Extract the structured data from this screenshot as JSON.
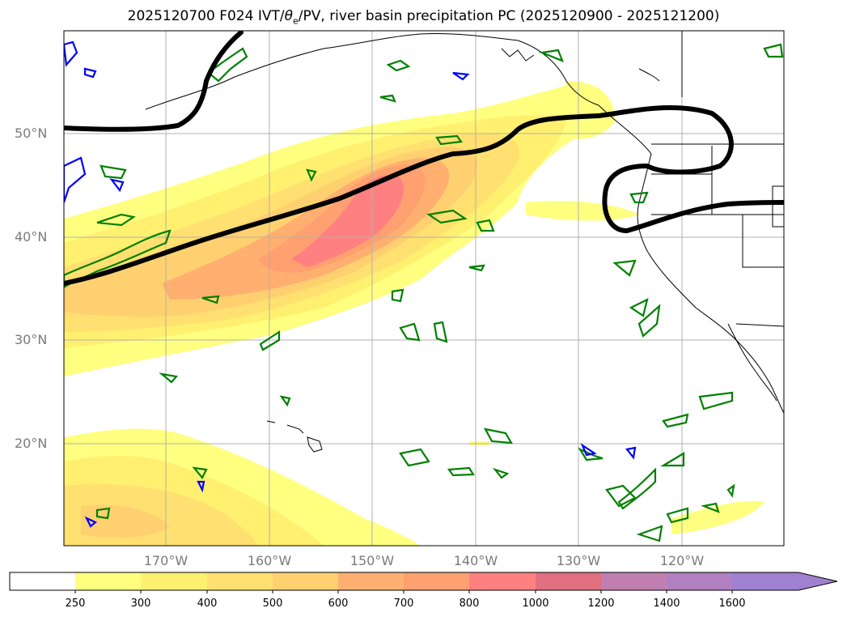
{
  "title": "2025120700 F024 IVT/θe/PV, river basin precipitation PC (2025120900 - 2025121200)",
  "title_parts": {
    "prefix": "2025120700 F024 IVT/",
    "theta": "θ",
    "sub": "e",
    "suffix": "/PV, river basin precipitation PC (2025120900 - 2025121200)"
  },
  "map": {
    "region": "North Pacific",
    "lat_labels": [
      "50°N",
      "40°N",
      "30°N",
      "20°N"
    ],
    "lon_labels": [
      "170°W",
      "160°W",
      "150°W",
      "140°W",
      "130°W",
      "120°W"
    ],
    "gridlines": true
  },
  "colorbar": {
    "ticks": [
      "250",
      "300",
      "400",
      "500",
      "600",
      "700",
      "800",
      "1000",
      "1200",
      "1400",
      "1600"
    ],
    "colors": [
      "#ffffff",
      "#ffff80",
      "#fff070",
      "#ffe070",
      "#ffd070",
      "#ffb070",
      "#ffa070",
      "#ff8080",
      "#e07080",
      "#c07fb0",
      "#b080c0",
      "#a080d0"
    ],
    "extend": "max"
  },
  "contour_colors": {
    "theta_e": "#000000",
    "pv_green": "#008000",
    "pv_blue": "#0000ff",
    "coastline": "#000000"
  }
}
